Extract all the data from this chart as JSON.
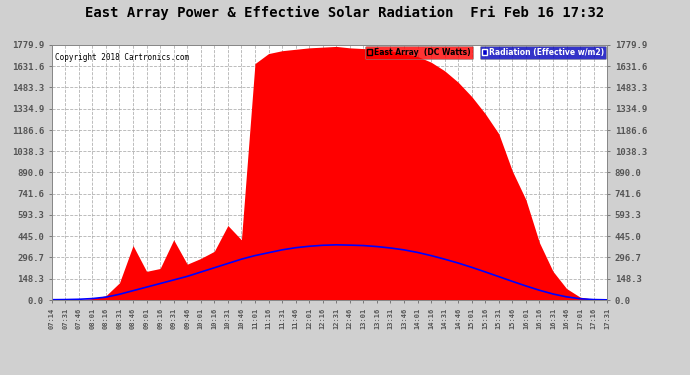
{
  "title": "East Array Power & Effective Solar Radiation  Fri Feb 16 17:32",
  "copyright": "Copyright 2018 Cartronics.com",
  "legend_labels": [
    "Radiation (Effective w/m2)",
    "East Array  (DC Watts)"
  ],
  "legend_colors_bg": [
    "#0000cc",
    "#ff0000"
  ],
  "legend_text_colors": [
    "#ffffff",
    "#000000"
  ],
  "ymax": 1779.9,
  "ymin": 0.0,
  "yticks": [
    0.0,
    148.3,
    296.7,
    445.0,
    593.3,
    741.6,
    890.0,
    1038.3,
    1186.6,
    1334.9,
    1483.3,
    1631.6,
    1779.9
  ],
  "background_color": "#ffffff",
  "figure_background": "#d0d0d0",
  "grid_color": "#aaaaaa",
  "x_times": [
    "07:14",
    "07:31",
    "07:46",
    "08:01",
    "08:16",
    "08:31",
    "08:46",
    "09:01",
    "09:16",
    "09:31",
    "09:46",
    "10:01",
    "10:16",
    "10:31",
    "10:46",
    "11:01",
    "11:16",
    "11:31",
    "11:46",
    "12:01",
    "12:16",
    "12:31",
    "12:46",
    "13:01",
    "13:16",
    "13:31",
    "13:46",
    "14:01",
    "14:16",
    "14:31",
    "14:46",
    "15:01",
    "15:16",
    "15:31",
    "15:46",
    "16:01",
    "16:16",
    "16:31",
    "16:46",
    "17:01",
    "17:16",
    "17:31"
  ],
  "red_values": [
    2,
    2,
    3,
    10,
    30,
    80,
    130,
    170,
    190,
    210,
    230,
    270,
    310,
    360,
    420,
    1650,
    1720,
    1740,
    1750,
    1760,
    1765,
    1770,
    1760,
    1755,
    1750,
    1740,
    1720,
    1700,
    1660,
    1600,
    1520,
    1420,
    1300,
    1160,
    900,
    700,
    400,
    200,
    80,
    20,
    5,
    1
  ],
  "red_spikes": {
    "indices": [
      5,
      6,
      7,
      8,
      9,
      10,
      11,
      12,
      13
    ],
    "values": [
      80,
      340,
      170,
      190,
      380,
      230,
      270,
      310,
      480
    ]
  },
  "blue_values": [
    2,
    3,
    5,
    10,
    20,
    40,
    65,
    90,
    115,
    140,
    165,
    195,
    225,
    255,
    285,
    310,
    330,
    350,
    365,
    375,
    382,
    385,
    383,
    380,
    373,
    363,
    350,
    332,
    310,
    285,
    258,
    228,
    196,
    163,
    130,
    98,
    68,
    42,
    22,
    9,
    3,
    1
  ]
}
